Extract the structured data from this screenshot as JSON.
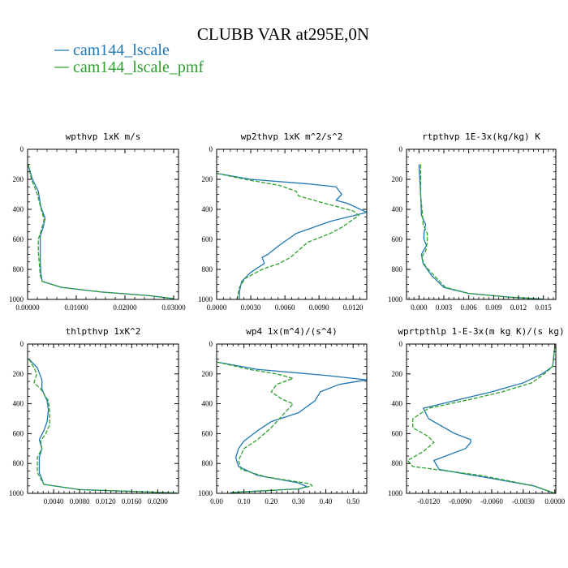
{
  "title": "CLUBB VAR at295E,0N",
  "legend": [
    {
      "label": "cam144_lscale",
      "color": "#1f77b4",
      "dash": false
    },
    {
      "label": "cam144_lscale_pmf",
      "color": "#2ca02c",
      "dash": true
    }
  ],
  "chart_data": [
    {
      "type": "line",
      "title": "wpthvp  1xK m/s",
      "xlim": [
        0,
        0.031
      ],
      "ylim": [
        1000,
        0
      ],
      "xticks": [
        0,
        0.01,
        0.02,
        0.03
      ],
      "xtick_labels": [
        "0.00000",
        "0.01000",
        "0.02000",
        "0.03000"
      ],
      "yticks": [
        0,
        200,
        400,
        600,
        800,
        1000
      ],
      "series": [
        {
          "name": "cam144_lscale",
          "points": [
            [
              0.0001,
              100
            ],
            [
              0.001,
              200
            ],
            [
              0.0022,
              280
            ],
            [
              0.0027,
              380
            ],
            [
              0.0036,
              460
            ],
            [
              0.0032,
              520
            ],
            [
              0.0026,
              580
            ],
            [
              0.0026,
              660
            ],
            [
              0.0026,
              740
            ],
            [
              0.0027,
              820
            ],
            [
              0.003,
              880
            ],
            [
              0.007,
              920
            ],
            [
              0.015,
              950
            ],
            [
              0.025,
              975
            ],
            [
              0.03,
              995
            ]
          ]
        },
        {
          "name": "cam144_lscale_pmf",
          "points": [
            [
              0.0001,
              100
            ],
            [
              0.0008,
              200
            ],
            [
              0.002,
              300
            ],
            [
              0.0028,
              400
            ],
            [
              0.0034,
              470
            ],
            [
              0.0028,
              540
            ],
            [
              0.0022,
              600
            ],
            [
              0.0022,
              680
            ],
            [
              0.0024,
              760
            ],
            [
              0.0026,
              840
            ],
            [
              0.003,
              880
            ],
            [
              0.007,
              920
            ],
            [
              0.015,
              950
            ],
            [
              0.025,
              975
            ],
            [
              0.03,
              995
            ]
          ]
        }
      ]
    },
    {
      "type": "line",
      "title": "wp2thvp  1xK m^2/s^2",
      "xlim": [
        0,
        0.0132
      ],
      "ylim": [
        1000,
        0
      ],
      "xticks": [
        0,
        0.003,
        0.006,
        0.009,
        0.012
      ],
      "xtick_labels": [
        "0.0000",
        "0.0030",
        "0.0060",
        "0.0090",
        "0.0120"
      ],
      "yticks": [
        0,
        200,
        400,
        600,
        800,
        1000
      ],
      "series": [
        {
          "name": "cam144_lscale",
          "points": [
            [
              0,
              160
            ],
            [
              0.003,
              200
            ],
            [
              0.008,
              230
            ],
            [
              0.0105,
              250
            ],
            [
              0.011,
              300
            ],
            [
              0.0105,
              340
            ],
            [
              0.0115,
              360
            ],
            [
              0.0132,
              420
            ],
            [
              0.01,
              480
            ],
            [
              0.007,
              560
            ],
            [
              0.0055,
              640
            ],
            [
              0.0045,
              700
            ],
            [
              0.004,
              720
            ],
            [
              0.0042,
              760
            ],
            [
              0.003,
              820
            ],
            [
              0.0022,
              880
            ],
            [
              0.002,
              950
            ],
            [
              0.002,
              1000
            ]
          ]
        },
        {
          "name": "cam144_lscale_pmf",
          "points": [
            [
              0,
              160
            ],
            [
              0.0025,
              200
            ],
            [
              0.0055,
              240
            ],
            [
              0.007,
              280
            ],
            [
              0.0072,
              310
            ],
            [
              0.0095,
              360
            ],
            [
              0.012,
              410
            ],
            [
              0.0125,
              440
            ],
            [
              0.011,
              520
            ],
            [
              0.01,
              560
            ],
            [
              0.008,
              620
            ],
            [
              0.0065,
              720
            ],
            [
              0.0055,
              760
            ],
            [
              0.004,
              800
            ],
            [
              0.0025,
              860
            ],
            [
              0.002,
              920
            ],
            [
              0.0018,
              1000
            ]
          ]
        }
      ]
    },
    {
      "type": "line",
      "title": "rtpthvp  1E-3x(kg/kg) K",
      "xlim": [
        -0.0015,
        0.0165
      ],
      "ylim": [
        1000,
        0
      ],
      "xticks": [
        0,
        0.003,
        0.006,
        0.009,
        0.012,
        0.015
      ],
      "xtick_labels": [
        "0.000",
        "0.003",
        "0.006",
        "0.009",
        "0.012",
        "0.015"
      ],
      "yticks": [
        0,
        200,
        400,
        600,
        800,
        1000
      ],
      "series": [
        {
          "name": "cam144_lscale",
          "points": [
            [
              0,
              100
            ],
            [
              0.0002,
              300
            ],
            [
              0.0003,
              440
            ],
            [
              0.0008,
              500
            ],
            [
              0.0006,
              560
            ],
            [
              0.0006,
              600
            ],
            [
              0.0009,
              640
            ],
            [
              0.0003,
              700
            ],
            [
              0.0005,
              760
            ],
            [
              0.0015,
              840
            ],
            [
              0.003,
              920
            ],
            [
              0.006,
              960
            ],
            [
              0.011,
              985
            ],
            [
              0.015,
              998
            ]
          ]
        },
        {
          "name": "cam144_lscale_pmf",
          "points": [
            [
              0.0002,
              100
            ],
            [
              0.0002,
              300
            ],
            [
              0.0004,
              420
            ],
            [
              0.0005,
              500
            ],
            [
              0.001,
              560
            ],
            [
              0.001,
              620
            ],
            [
              0.0008,
              680
            ],
            [
              0.0003,
              720
            ],
            [
              0.0008,
              780
            ],
            [
              0.0018,
              840
            ],
            [
              0.0032,
              920
            ],
            [
              0.006,
              960
            ],
            [
              0.011,
              985
            ],
            [
              0.015,
              998
            ]
          ]
        }
      ]
    },
    {
      "type": "line",
      "title": "thlpthvp  1xK^2",
      "xlim": [
        0,
        0.0232
      ],
      "ylim": [
        1000,
        0
      ],
      "xticks": [
        0.004,
        0.008,
        0.012,
        0.016,
        0.02
      ],
      "xtick_labels": [
        "0.0040",
        "0.0080",
        "0.0120",
        "0.0160",
        "0.0200"
      ],
      "yticks": [
        0,
        200,
        400,
        600,
        800,
        1000
      ],
      "series": [
        {
          "name": "cam144_lscale",
          "points": [
            [
              0.0002,
              100
            ],
            [
              0.0015,
              160
            ],
            [
              0.0022,
              240
            ],
            [
              0.0022,
              300
            ],
            [
              0.003,
              380
            ],
            [
              0.0032,
              440
            ],
            [
              0.003,
              520
            ],
            [
              0.0025,
              580
            ],
            [
              0.0018,
              640
            ],
            [
              0.0022,
              700
            ],
            [
              0.0018,
              760
            ],
            [
              0.0018,
              860
            ],
            [
              0.0025,
              940
            ],
            [
              0.008,
              975
            ],
            [
              0.018,
              990
            ],
            [
              0.023,
              998
            ]
          ]
        },
        {
          "name": "cam144_lscale_pmf",
          "points": [
            [
              0.0002,
              100
            ],
            [
              0.001,
              160
            ],
            [
              0.0014,
              200
            ],
            [
              0.001,
              260
            ],
            [
              0.002,
              300
            ],
            [
              0.0032,
              380
            ],
            [
              0.0034,
              460
            ],
            [
              0.0034,
              540
            ],
            [
              0.0028,
              600
            ],
            [
              0.002,
              650
            ],
            [
              0.0022,
              700
            ],
            [
              0.0015,
              760
            ],
            [
              0.0015,
              860
            ],
            [
              0.0025,
              940
            ],
            [
              0.008,
              975
            ],
            [
              0.018,
              990
            ],
            [
              0.023,
              998
            ]
          ]
        }
      ]
    },
    {
      "type": "line",
      "title": "wp4  1x(m^4)/(s^4)",
      "xlim": [
        0,
        0.55
      ],
      "ylim": [
        1000,
        0
      ],
      "xticks": [
        0,
        0.1,
        0.2,
        0.3,
        0.4,
        0.5
      ],
      "xtick_labels": [
        "0.00",
        "0.10",
        "0.20",
        "0.30",
        "0.40",
        "0.50"
      ],
      "yticks": [
        0,
        200,
        400,
        600,
        800,
        1000
      ],
      "series": [
        {
          "name": "cam144_lscale",
          "points": [
            [
              0,
              120
            ],
            [
              0.15,
              170
            ],
            [
              0.4,
              210
            ],
            [
              0.55,
              240
            ],
            [
              0.45,
              270
            ],
            [
              0.38,
              320
            ],
            [
              0.36,
              380
            ],
            [
              0.3,
              460
            ],
            [
              0.2,
              520
            ],
            [
              0.15,
              580
            ],
            [
              0.1,
              650
            ],
            [
              0.08,
              700
            ],
            [
              0.07,
              760
            ],
            [
              0.08,
              820
            ],
            [
              0.15,
              880
            ],
            [
              0.3,
              930
            ],
            [
              0.33,
              955
            ],
            [
              0.3,
              970
            ],
            [
              0.05,
              995
            ]
          ]
        },
        {
          "name": "cam144_lscale_pmf",
          "points": [
            [
              0,
              120
            ],
            [
              0.12,
              170
            ],
            [
              0.22,
              200
            ],
            [
              0.28,
              230
            ],
            [
              0.22,
              270
            ],
            [
              0.2,
              320
            ],
            [
              0.24,
              370
            ],
            [
              0.28,
              400
            ],
            [
              0.24,
              480
            ],
            [
              0.2,
              560
            ],
            [
              0.15,
              640
            ],
            [
              0.1,
              700
            ],
            [
              0.08,
              780
            ],
            [
              0.09,
              840
            ],
            [
              0.18,
              890
            ],
            [
              0.34,
              935
            ],
            [
              0.35,
              950
            ],
            [
              0.3,
              970
            ],
            [
              0.05,
              995
            ]
          ]
        }
      ]
    },
    {
      "type": "line",
      "title": "wprtpthlp  1-E-3x(m kg K)/(s kg)",
      "xlim": [
        -0.0141,
        0.0001
      ],
      "ylim": [
        1000,
        0
      ],
      "xticks": [
        -0.012,
        -0.009,
        -0.006,
        -0.003,
        0
      ],
      "xtick_labels": [
        "-0.0120",
        "-0.0090",
        "-0.0060",
        "-0.0030",
        "0.0000"
      ],
      "yticks": [
        0,
        200,
        400,
        600,
        800,
        1000
      ],
      "series": [
        {
          "name": "cam144_lscale",
          "points": [
            [
              0,
              20
            ],
            [
              -0.0002,
              150
            ],
            [
              -0.0012,
              200
            ],
            [
              -0.003,
              260
            ],
            [
              -0.006,
              320
            ],
            [
              -0.009,
              370
            ],
            [
              -0.0125,
              430
            ],
            [
              -0.012,
              500
            ],
            [
              -0.0105,
              560
            ],
            [
              -0.0095,
              600
            ],
            [
              -0.008,
              640
            ],
            [
              -0.008,
              660
            ],
            [
              -0.0085,
              700
            ],
            [
              -0.01,
              740
            ],
            [
              -0.0115,
              780
            ],
            [
              -0.011,
              840
            ],
            [
              -0.006,
              900
            ],
            [
              -0.002,
              950
            ],
            [
              0,
              1000
            ]
          ]
        },
        {
          "name": "cam144_lscale_pmf",
          "points": [
            [
              0,
              20
            ],
            [
              -0.0002,
              150
            ],
            [
              -0.001,
              200
            ],
            [
              -0.0022,
              260
            ],
            [
              -0.005,
              320
            ],
            [
              -0.008,
              370
            ],
            [
              -0.012,
              430
            ],
            [
              -0.0135,
              500
            ],
            [
              -0.0135,
              560
            ],
            [
              -0.012,
              620
            ],
            [
              -0.0115,
              660
            ],
            [
              -0.0125,
              720
            ],
            [
              -0.014,
              780
            ],
            [
              -0.0135,
              820
            ],
            [
              -0.007,
              880
            ],
            [
              -0.002,
              950
            ],
            [
              0,
              1000
            ]
          ]
        }
      ]
    }
  ]
}
